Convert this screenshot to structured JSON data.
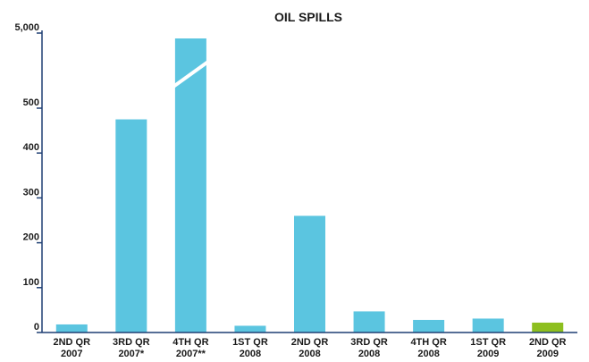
{
  "chart_data": {
    "type": "bar",
    "title": "OIL SPILLS",
    "xlabel": "",
    "ylabel": "",
    "axis_break": true,
    "ylim": [
      0,
      5000
    ],
    "yticks": [
      {
        "value": 0,
        "label": "0"
      },
      {
        "value": 100,
        "label": "100"
      },
      {
        "value": 200,
        "label": "200"
      },
      {
        "value": 300,
        "label": "300"
      },
      {
        "value": 400,
        "label": "400"
      },
      {
        "value": 500,
        "label": "500"
      },
      {
        "value": 5000,
        "label": "5,000"
      }
    ],
    "categories": [
      [
        "2ND QR",
        "2007"
      ],
      [
        "3RD QR",
        "2007*"
      ],
      [
        "4TH QR",
        "2007**"
      ],
      [
        "1ST QR",
        "2008"
      ],
      [
        "2ND QR",
        "2008"
      ],
      [
        "3RD QR",
        "2008"
      ],
      [
        "4TH QR",
        "2008"
      ],
      [
        "1ST QR",
        "2009"
      ],
      [
        "2ND QR",
        "2009"
      ]
    ],
    "values": [
      18,
      475,
      5000,
      15,
      260,
      47,
      28,
      31,
      22
    ],
    "broken_bars": [
      2
    ],
    "highlight_index": 8
  },
  "colors": {
    "bar": "#5bc5e0",
    "highlight": "#8dbf1f",
    "axis": "#1f3f73",
    "text": "#1a1a1a"
  }
}
